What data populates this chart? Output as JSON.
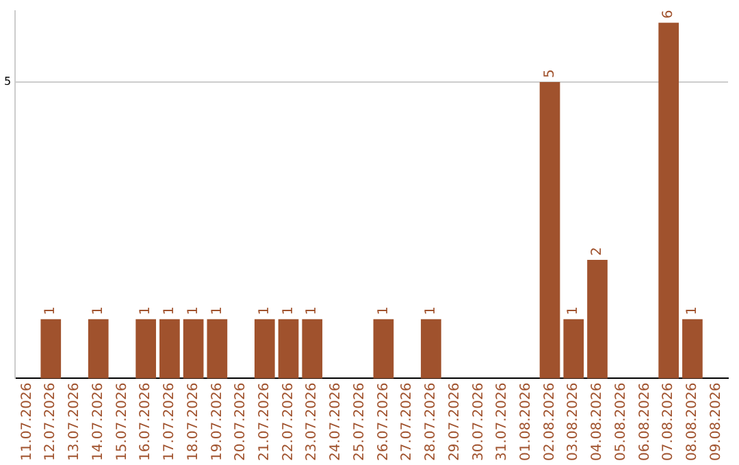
{
  "chart_data": {
    "type": "bar",
    "categories": [
      "11.07.2026",
      "12.07.2026",
      "13.07.2026",
      "14.07.2026",
      "15.07.2026",
      "16.07.2026",
      "17.07.2026",
      "18.07.2026",
      "19.07.2026",
      "20.07.2026",
      "21.07.2026",
      "22.07.2026",
      "23.07.2026",
      "24.07.2026",
      "25.07.2026",
      "26.07.2026",
      "27.07.2026",
      "28.07.2026",
      "29.07.2026",
      "30.07.2026",
      "31.07.2026",
      "01.08.2026",
      "02.08.2026",
      "03.08.2026",
      "04.08.2026",
      "05.08.2026",
      "06.08.2026",
      "07.08.2026",
      "08.08.2026",
      "09.08.2026"
    ],
    "values": [
      0,
      1,
      0,
      1,
      0,
      1,
      1,
      1,
      1,
      0,
      1,
      1,
      1,
      0,
      0,
      1,
      0,
      1,
      0,
      0,
      0,
      0,
      5,
      1,
      2,
      0,
      0,
      6,
      1,
      0
    ],
    "value_labels": [
      null,
      "1",
      null,
      "1",
      null,
      "1",
      "1",
      "1",
      "1",
      null,
      "1",
      "1",
      "1",
      null,
      null,
      "1",
      null,
      "1",
      null,
      null,
      null,
      null,
      "5",
      "1",
      "2",
      null,
      null,
      "6",
      "1",
      null
    ],
    "color": "#a0522d",
    "ylim": [
      0,
      6.2
    ],
    "yticks": [
      5
    ],
    "grid": "y",
    "legend": false
  }
}
